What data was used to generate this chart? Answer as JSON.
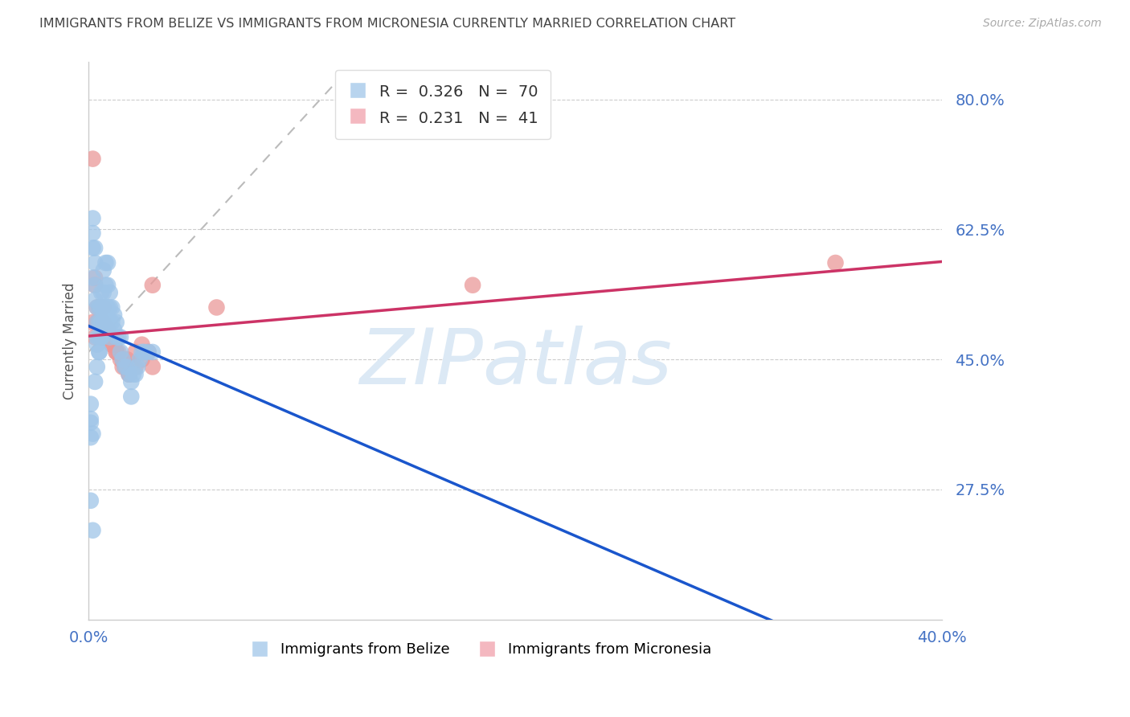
{
  "title": "IMMIGRANTS FROM BELIZE VS IMMIGRANTS FROM MICRONESIA CURRENTLY MARRIED CORRELATION CHART",
  "source": "Source: ZipAtlas.com",
  "ylabel": "Currently Married",
  "xlim": [
    0.0,
    0.4
  ],
  "ylim": [
    0.1,
    0.85
  ],
  "yticks": [
    0.275,
    0.45,
    0.625,
    0.8
  ],
  "ytick_labels": [
    "27.5%",
    "45.0%",
    "62.5%",
    "80.0%"
  ],
  "xticks": [
    0.0,
    0.1,
    0.2,
    0.3,
    0.4
  ],
  "xtick_labels": [
    "0.0%",
    "",
    "",
    "",
    "40.0%"
  ],
  "belize": {
    "name": "Immigrants from Belize",
    "R": "0.326",
    "N": "70",
    "dot_color": "#9fc5e8",
    "line_color": "#1a56cc",
    "x": [
      0.001,
      0.001,
      0.001,
      0.002,
      0.002,
      0.002,
      0.002,
      0.003,
      0.003,
      0.003,
      0.003,
      0.004,
      0.004,
      0.004,
      0.004,
      0.005,
      0.005,
      0.005,
      0.005,
      0.006,
      0.006,
      0.006,
      0.006,
      0.007,
      0.007,
      0.007,
      0.007,
      0.008,
      0.008,
      0.008,
      0.009,
      0.009,
      0.009,
      0.01,
      0.01,
      0.01,
      0.01,
      0.011,
      0.011,
      0.012,
      0.012,
      0.013,
      0.013,
      0.014,
      0.015,
      0.015,
      0.016,
      0.017,
      0.018,
      0.019,
      0.02,
      0.02,
      0.021,
      0.022,
      0.023,
      0.024,
      0.025,
      0.026,
      0.028,
      0.03,
      0.001,
      0.002,
      0.003,
      0.004,
      0.005,
      0.006,
      0.007,
      0.008,
      0.001,
      0.002
    ],
    "y": [
      0.365,
      0.345,
      0.39,
      0.56,
      0.6,
      0.62,
      0.64,
      0.53,
      0.55,
      0.58,
      0.6,
      0.47,
      0.48,
      0.5,
      0.52,
      0.46,
      0.48,
      0.5,
      0.52,
      0.48,
      0.5,
      0.52,
      0.54,
      0.5,
      0.52,
      0.54,
      0.57,
      0.52,
      0.55,
      0.58,
      0.52,
      0.55,
      0.58,
      0.48,
      0.5,
      0.52,
      0.54,
      0.5,
      0.52,
      0.49,
      0.51,
      0.48,
      0.5,
      0.48,
      0.46,
      0.48,
      0.45,
      0.44,
      0.44,
      0.43,
      0.4,
      0.42,
      0.43,
      0.43,
      0.44,
      0.45,
      0.46,
      0.46,
      0.46,
      0.46,
      0.37,
      0.35,
      0.42,
      0.44,
      0.46,
      0.48,
      0.5,
      0.52,
      0.26,
      0.22
    ]
  },
  "micronesia": {
    "name": "Immigrants from Micronesia",
    "R": "0.231",
    "N": "41",
    "dot_color": "#ea9999",
    "line_color": "#cc3366",
    "x": [
      0.002,
      0.003,
      0.004,
      0.005,
      0.006,
      0.007,
      0.008,
      0.009,
      0.01,
      0.011,
      0.012,
      0.013,
      0.014,
      0.015,
      0.016,
      0.017,
      0.018,
      0.019,
      0.02,
      0.022,
      0.025,
      0.028,
      0.03,
      0.003,
      0.004,
      0.005,
      0.006,
      0.007,
      0.009,
      0.011,
      0.013,
      0.016,
      0.019,
      0.022,
      0.025,
      0.03,
      0.002,
      0.003,
      0.06,
      0.18,
      0.35
    ],
    "y": [
      0.72,
      0.56,
      0.5,
      0.52,
      0.48,
      0.5,
      0.48,
      0.49,
      0.48,
      0.47,
      0.47,
      0.46,
      0.46,
      0.45,
      0.45,
      0.44,
      0.45,
      0.43,
      0.44,
      0.44,
      0.47,
      0.46,
      0.55,
      0.55,
      0.52,
      0.5,
      0.48,
      0.52,
      0.49,
      0.47,
      0.46,
      0.44,
      0.43,
      0.46,
      0.45,
      0.44,
      0.5,
      0.48,
      0.52,
      0.55,
      0.58
    ]
  },
  "bg_color": "#ffffff",
  "grid_color": "#cccccc",
  "title_color": "#444444",
  "tick_color": "#4472c4",
  "watermark": "ZIPatlas",
  "watermark_color": "#dce9f5"
}
